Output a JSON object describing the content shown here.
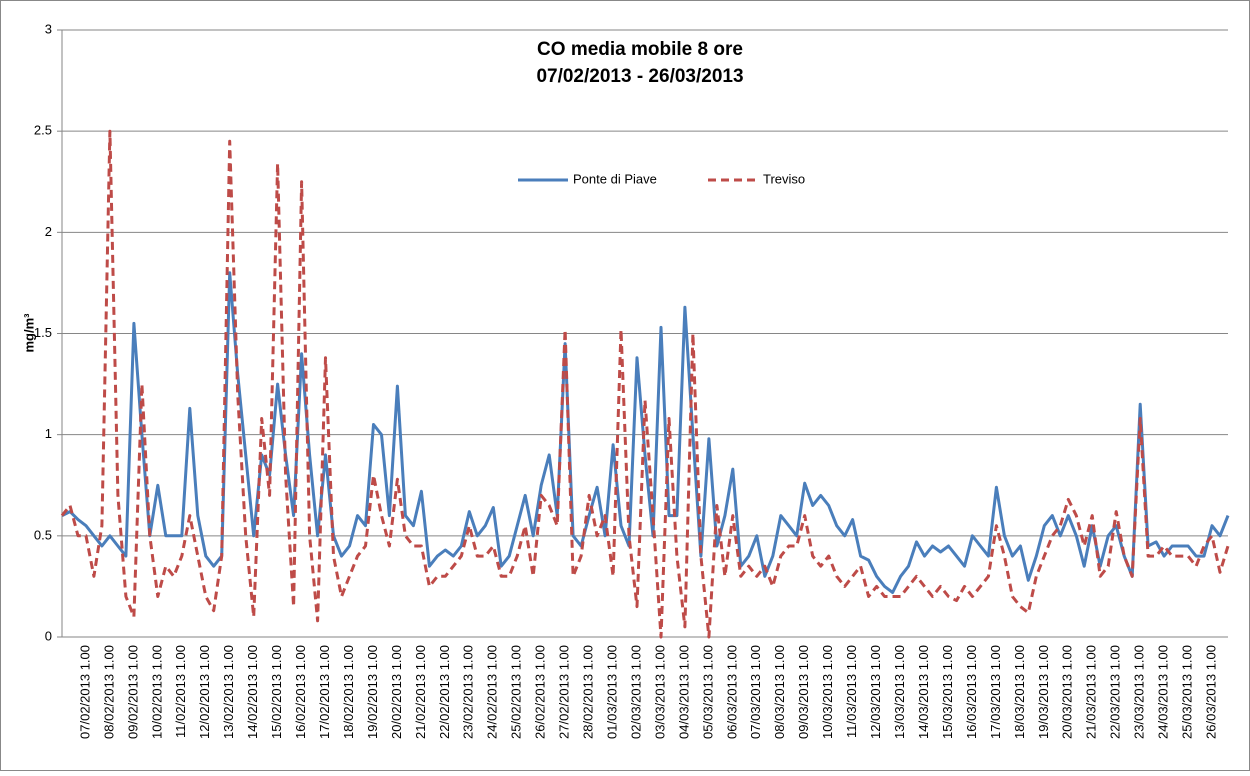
{
  "chart_data": {
    "type": "line",
    "title": "CO media mobile 8 ore",
    "subtitle": "07/02/2013 - 26/03/2013",
    "y_label": "mg/m³",
    "ylim": [
      0,
      3
    ],
    "yticks": [
      0,
      0.5,
      1,
      1.5,
      2,
      2.5,
      3
    ],
    "grid": true,
    "categories": [
      null,
      null,
      null,
      "07/02/2013 1.00",
      null,
      null,
      "08/02/2013 1.00",
      null,
      null,
      "09/02/2013 1.00",
      null,
      null,
      "10/02/2013 1.00",
      null,
      null,
      "11/02/2013 1.00",
      null,
      null,
      "12/02/2013 1.00",
      null,
      null,
      "13/02/2013 1.00",
      null,
      null,
      "14/02/2013 1.00",
      null,
      null,
      "15/02/2013 1.00",
      null,
      null,
      "16/02/2013 1.00",
      null,
      null,
      "17/02/2013 1.00",
      null,
      null,
      "18/02/2013 1.00",
      null,
      null,
      "19/02/2013 1.00",
      null,
      null,
      "20/02/2013 1.00",
      null,
      null,
      "21/02/2013 1.00",
      null,
      null,
      "22/02/2013 1.00",
      null,
      null,
      "23/02/2013 1.00",
      null,
      null,
      "24/02/2013 1.00",
      null,
      null,
      "25/02/2013 1.00",
      null,
      null,
      "26/02/2013 1.00",
      null,
      null,
      "27/02/2013 1.00",
      null,
      null,
      "28/02/2013 1.00",
      null,
      null,
      "01/03/2013 1.00",
      null,
      null,
      "02/03/2013 1.00",
      null,
      null,
      "03/03/2013 1.00",
      null,
      null,
      "04/03/2013 1.00",
      null,
      null,
      "05/03/2013 1.00",
      null,
      null,
      "06/03/2013 1.00",
      null,
      null,
      "07/03/2013 1.00",
      null,
      null,
      "08/03/2013 1.00",
      null,
      null,
      "09/03/2013 1.00",
      null,
      null,
      "10/03/2013 1.00",
      null,
      null,
      "11/03/2013 1.00",
      null,
      null,
      "12/03/2013 1.00",
      null,
      null,
      "13/03/2013 1.00",
      null,
      null,
      "14/03/2013 1.00",
      null,
      null,
      "15/03/2013 1.00",
      null,
      null,
      "16/03/2013 1.00",
      null,
      null,
      "17/03/2013 1.00",
      null,
      null,
      "18/03/2013 1.00",
      null,
      null,
      "19/03/2013 1.00",
      null,
      null,
      "20/03/2013 1.00",
      null,
      null,
      "21/03/2013 1.00",
      null,
      null,
      "22/03/2013 1.00",
      null,
      null,
      "23/03/2013 1.00",
      null,
      null,
      "24/03/2013 1.00",
      null,
      null,
      "25/03/2013 1.00",
      null,
      null,
      "26/03/2013 1.00",
      null,
      null
    ],
    "series": [
      {
        "name": "Ponte di Piave",
        "color": "#4a7ebb",
        "dashed": false,
        "values": [
          0.6,
          0.62,
          0.58,
          0.55,
          0.5,
          0.45,
          0.5,
          0.45,
          0.4,
          1.55,
          1.0,
          0.5,
          0.75,
          0.5,
          0.5,
          0.5,
          1.13,
          0.6,
          0.4,
          0.35,
          0.4,
          1.8,
          1.3,
          0.9,
          0.5,
          0.9,
          0.8,
          1.25,
          0.9,
          0.6,
          1.4,
          0.9,
          0.5,
          0.9,
          0.5,
          0.4,
          0.45,
          0.6,
          0.55,
          1.05,
          1.0,
          0.6,
          1.24,
          0.6,
          0.55,
          0.72,
          0.35,
          0.4,
          0.43,
          0.4,
          0.45,
          0.62,
          0.5,
          0.55,
          0.64,
          0.35,
          0.4,
          0.55,
          0.7,
          0.5,
          0.75,
          0.9,
          0.6,
          1.45,
          0.5,
          0.45,
          0.6,
          0.74,
          0.5,
          0.95,
          0.55,
          0.45,
          1.38,
          0.9,
          0.5,
          1.53,
          0.6,
          0.6,
          1.63,
          1.0,
          0.4,
          0.98,
          0.45,
          0.6,
          0.83,
          0.35,
          0.4,
          0.5,
          0.3,
          0.4,
          0.6,
          0.55,
          0.5,
          0.76,
          0.65,
          0.7,
          0.65,
          0.55,
          0.5,
          0.58,
          0.4,
          0.38,
          0.3,
          0.25,
          0.22,
          0.3,
          0.35,
          0.47,
          0.4,
          0.45,
          0.42,
          0.45,
          0.4,
          0.35,
          0.5,
          0.45,
          0.4,
          0.74,
          0.5,
          0.4,
          0.45,
          0.28,
          0.4,
          0.55,
          0.6,
          0.5,
          0.6,
          0.5,
          0.35,
          0.55,
          0.35,
          0.5,
          0.55,
          0.4,
          0.3,
          1.15,
          0.45,
          0.47,
          0.4,
          0.45,
          0.45,
          0.45,
          0.4,
          0.4,
          0.55,
          0.5,
          0.6
        ]
      },
      {
        "name": "Treviso",
        "color": "#be4b48",
        "dashed": true,
        "values": [
          0.6,
          0.65,
          0.5,
          0.5,
          0.3,
          0.55,
          2.5,
          0.7,
          0.2,
          0.1,
          1.25,
          0.5,
          0.2,
          0.35,
          0.3,
          0.4,
          0.6,
          0.4,
          0.2,
          0.13,
          0.4,
          2.45,
          1.2,
          0.5,
          0.1,
          1.08,
          0.7,
          2.34,
          0.8,
          0.15,
          2.25,
          0.5,
          0.08,
          1.38,
          0.4,
          0.2,
          0.3,
          0.4,
          0.45,
          0.8,
          0.6,
          0.45,
          0.78,
          0.5,
          0.45,
          0.45,
          0.25,
          0.3,
          0.3,
          0.35,
          0.4,
          0.55,
          0.4,
          0.4,
          0.45,
          0.3,
          0.3,
          0.4,
          0.55,
          0.3,
          0.7,
          0.65,
          0.55,
          1.52,
          0.3,
          0.4,
          0.7,
          0.5,
          0.6,
          0.3,
          1.52,
          0.5,
          0.15,
          1.17,
          0.6,
          0.0,
          1.08,
          0.4,
          0.05,
          1.5,
          0.4,
          0.0,
          0.65,
          0.3,
          0.6,
          0.3,
          0.35,
          0.3,
          0.35,
          0.25,
          0.4,
          0.45,
          0.45,
          0.6,
          0.4,
          0.35,
          0.4,
          0.3,
          0.25,
          0.3,
          0.35,
          0.2,
          0.25,
          0.2,
          0.2,
          0.2,
          0.25,
          0.3,
          0.25,
          0.2,
          0.25,
          0.2,
          0.18,
          0.25,
          0.2,
          0.25,
          0.3,
          0.55,
          0.4,
          0.2,
          0.15,
          0.12,
          0.3,
          0.4,
          0.5,
          0.55,
          0.68,
          0.6,
          0.45,
          0.6,
          0.3,
          0.35,
          0.62,
          0.4,
          0.3,
          1.08,
          0.4,
          0.4,
          0.45,
          0.4,
          0.4,
          0.4,
          0.35,
          0.45,
          0.5,
          0.32,
          0.45
        ]
      }
    ]
  }
}
